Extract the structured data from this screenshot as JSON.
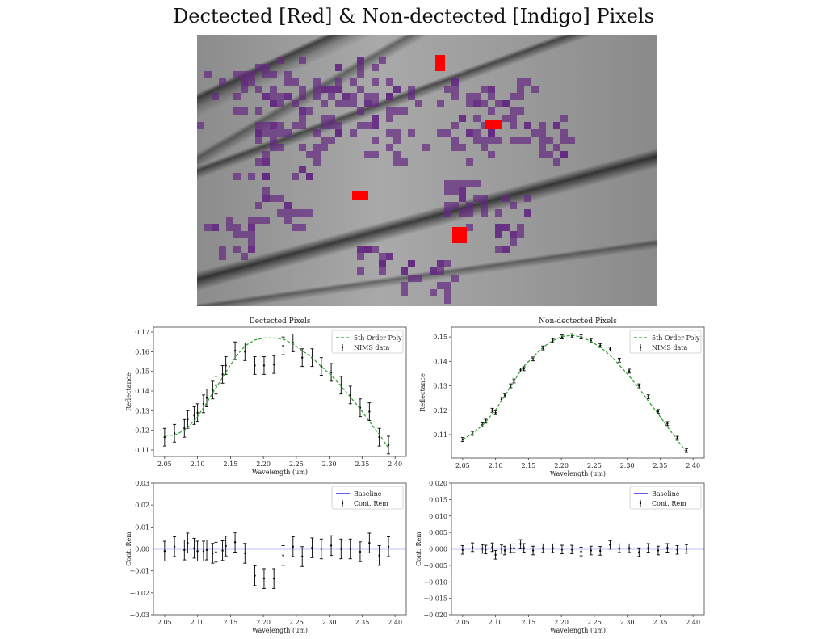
{
  "title": "Dectected [Red] & Non-dectected [Indigo] Pixels",
  "colors": {
    "detected": "#ff0000",
    "non_detected": "#64288c",
    "fit": "#2ca02c",
    "baseline": "#0000ff",
    "data": "#000000"
  },
  "chart_data": [
    {
      "type": "line",
      "title": "Dectected Pixels",
      "xlabel": "Wavelength (μm)",
      "ylabel": "Reflectance",
      "xlim": [
        2.033,
        2.417
      ],
      "ylim": [
        0.1067,
        0.1725
      ],
      "xticks": [
        "2.05",
        "2.10",
        "2.15",
        "2.20",
        "2.25",
        "2.30",
        "2.35",
        "2.40"
      ],
      "yticks": [
        "0.11",
        "0.12",
        "0.13",
        "0.14",
        "0.15",
        "0.16",
        "0.17"
      ],
      "legend": {
        "placement": "top-right",
        "entries": [
          "5th Order Poly",
          "NIMS data"
        ]
      },
      "x": [
        2.05,
        2.065,
        2.08,
        2.085,
        2.095,
        2.1,
        2.109,
        2.114,
        2.123,
        2.128,
        2.138,
        2.143,
        2.157,
        2.172,
        2.187,
        2.201,
        2.216,
        2.23,
        2.245,
        2.259,
        2.274,
        2.288,
        2.303,
        2.318,
        2.332,
        2.347,
        2.361,
        2.376,
        2.39
      ],
      "series": [
        {
          "name": "NIMS data",
          "kind": "errorbar",
          "values": [
            0.1165,
            0.1185,
            0.121,
            0.1255,
            0.1275,
            0.129,
            0.1335,
            0.1365,
            0.1405,
            0.143,
            0.1485,
            0.153,
            0.1605,
            0.16,
            0.153,
            0.153,
            0.1535,
            0.163,
            0.1645,
            0.157,
            0.157,
            0.1525,
            0.1495,
            0.143,
            0.138,
            0.1315,
            0.1295,
            0.1165,
            0.1125
          ],
          "error": 0.0045
        },
        {
          "name": "5th Order Poly",
          "kind": "dashed",
          "values": [
            0.1175,
            0.1175,
            0.12,
            0.1215,
            0.125,
            0.127,
            0.1315,
            0.134,
            0.139,
            0.1415,
            0.147,
            0.1495,
            0.157,
            0.163,
            0.166,
            0.167,
            0.167,
            0.1665,
            0.164,
            0.1605,
            0.157,
            0.1525,
            0.148,
            0.1425,
            0.137,
            0.131,
            0.1245,
            0.118,
            0.111
          ]
        }
      ]
    },
    {
      "type": "line",
      "title": "Non-dectected Pixels",
      "xlabel": "Wavelength (μm)",
      "ylabel": "Reflectance",
      "xlim": [
        2.033,
        2.417
      ],
      "ylim": [
        0.1004,
        0.154
      ],
      "xticks": [
        "2.05",
        "2.10",
        "2.15",
        "2.20",
        "2.25",
        "2.30",
        "2.35",
        "2.40"
      ],
      "yticks": [
        "0.11",
        "0.12",
        "0.13",
        "0.14",
        "0.15"
      ],
      "legend": {
        "placement": "top-right",
        "entries": [
          "5th Order Poly",
          "NIMS data"
        ]
      },
      "x": [
        2.05,
        2.065,
        2.08,
        2.085,
        2.095,
        2.1,
        2.109,
        2.114,
        2.123,
        2.128,
        2.138,
        2.143,
        2.157,
        2.172,
        2.187,
        2.201,
        2.216,
        2.23,
        2.245,
        2.259,
        2.274,
        2.288,
        2.303,
        2.318,
        2.332,
        2.347,
        2.361,
        2.376,
        2.39
      ],
      "series": [
        {
          "name": "NIMS data",
          "kind": "errorbar",
          "values": [
            0.108,
            0.1105,
            0.114,
            0.1155,
            0.12,
            0.119,
            0.1245,
            0.126,
            0.13,
            0.132,
            0.1365,
            0.137,
            0.141,
            0.1455,
            0.1485,
            0.15,
            0.1505,
            0.15,
            0.1485,
            0.1465,
            0.145,
            0.1405,
            0.136,
            0.13,
            0.1255,
            0.1195,
            0.1145,
            0.1085,
            0.1035
          ],
          "error": 0.0008
        },
        {
          "name": "5th Order Poly",
          "kind": "dashed",
          "values": [
            0.108,
            0.1105,
            0.1138,
            0.1152,
            0.1185,
            0.1202,
            0.1238,
            0.1258,
            0.1298,
            0.1318,
            0.1362,
            0.138,
            0.1418,
            0.1458,
            0.1485,
            0.1502,
            0.1507,
            0.15,
            0.1482,
            0.1458,
            0.1425,
            0.1385,
            0.134,
            0.129,
            0.1238,
            0.1185,
            0.1132,
            0.1078,
            0.1028
          ]
        }
      ]
    },
    {
      "type": "line",
      "title": "",
      "xlabel": "Wavelength (μm)",
      "ylabel": "Cont. Rem",
      "xlim": [
        2.033,
        2.417
      ],
      "ylim": [
        -0.03,
        0.03
      ],
      "xticks": [
        "2.05",
        "2.10",
        "2.15",
        "2.20",
        "2.25",
        "2.30",
        "2.35",
        "2.40"
      ],
      "yticks": [
        "-0.03",
        "-0.02",
        "-0.01",
        "0.00",
        "0.01",
        "0.02",
        "0.03"
      ],
      "legend": {
        "placement": "top-right",
        "entries": [
          "Baseline",
          "Cont. Rem"
        ]
      },
      "x": [
        2.05,
        2.065,
        2.08,
        2.085,
        2.095,
        2.1,
        2.109,
        2.114,
        2.123,
        2.128,
        2.138,
        2.143,
        2.157,
        2.172,
        2.187,
        2.201,
        2.216,
        2.23,
        2.245,
        2.259,
        2.274,
        2.288,
        2.303,
        2.318,
        2.332,
        2.347,
        2.361,
        2.376,
        2.39
      ],
      "series": [
        {
          "name": "Cont. Rem",
          "kind": "errorbar",
          "values": [
            -0.001,
            0.001,
            -0.0005,
            0.0027,
            0.0003,
            -0.001,
            -0.001,
            -0.0005,
            -0.002,
            -0.0015,
            -0.0008,
            0.0013,
            0.003,
            -0.002,
            -0.0122,
            -0.0135,
            -0.0135,
            -0.003,
            0.001,
            -0.0035,
            0.0005,
            0,
            0.0015,
            0,
            0,
            -0.0013,
            0.0027,
            -0.003,
            0.001
          ],
          "error": 0.0045
        },
        {
          "name": "Baseline",
          "kind": "hline",
          "value": 0
        }
      ]
    },
    {
      "type": "line",
      "title": "",
      "xlabel": "Wavelength (μm)",
      "ylabel": "Cont. Rem",
      "xlim": [
        2.033,
        2.417
      ],
      "ylim": [
        -0.02,
        0.02
      ],
      "xticks": [
        "2.05",
        "2.10",
        "2.15",
        "2.20",
        "2.25",
        "2.30",
        "2.35",
        "2.40"
      ],
      "yticks": [
        "-0.020",
        "-0.015",
        "-0.010",
        "-0.005",
        "0.000",
        "0.005",
        "0.010",
        "0.015",
        "0.020"
      ],
      "legend": {
        "placement": "top-right",
        "entries": [
          "Baseline",
          "Cont. Rem"
        ]
      },
      "x": [
        2.05,
        2.065,
        2.08,
        2.085,
        2.095,
        2.1,
        2.109,
        2.114,
        2.123,
        2.128,
        2.138,
        2.143,
        2.157,
        2.172,
        2.187,
        2.201,
        2.216,
        2.23,
        2.245,
        2.259,
        2.274,
        2.288,
        2.303,
        2.318,
        2.332,
        2.347,
        2.361,
        2.376,
        2.39
      ],
      "series": [
        {
          "name": "Cont. Rem",
          "kind": "errorbar",
          "values": [
            -0.0003,
            0.0005,
            0,
            -0.0002,
            0.0005,
            -0.0018,
            0,
            -0.0005,
            0.0002,
            0.0002,
            0.0015,
            0.0003,
            -0.0005,
            0.0002,
            0.0002,
            -0.0002,
            -0.0002,
            -0.0008,
            -0.0005,
            -0.0006,
            0.0012,
            0.0002,
            0.0002,
            -0.001,
            0.0003,
            -0.0005,
            0.0003,
            -0.0003,
            0
          ],
          "error": 0.0013
        },
        {
          "name": "Baseline",
          "kind": "hline",
          "value": 0
        }
      ]
    }
  ]
}
